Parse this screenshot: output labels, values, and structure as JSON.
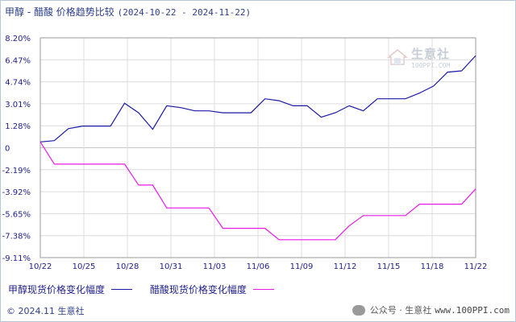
{
  "header": {
    "title": "甲醇 - 醋酸 价格趋势比较",
    "date_range": "(2024-10-22 - 2024-11-22)"
  },
  "watermark": {
    "name": "生意社",
    "site": "100PPI.COM"
  },
  "footer": {
    "copyright": "© 2024.11 生意社",
    "wechat": "公众号 · 生意社",
    "site": "www.100PPI.com"
  },
  "colors": {
    "series_methanol": "#1a1aa6",
    "series_acetic": "#e81ae8",
    "grid": "#dcdcdc",
    "axis_text": "#1e1e8a"
  },
  "chart_data": {
    "type": "line",
    "title": "甲醇 - 醋酸 价格趋势比较",
    "xlabel": "",
    "ylabel": "",
    "x_tick_labels": [
      "10/22",
      "10/25",
      "10/28",
      "10/31",
      "11/03",
      "11/06",
      "11/09",
      "11/12",
      "11/15",
      "11/18",
      "11/22"
    ],
    "y_tick_labels": [
      "8.20%",
      "6.47%",
      "4.74%",
      "3.01%",
      "1.28%",
      "0",
      "-2.19%",
      "-3.92%",
      "-5.65%",
      "-7.38%",
      "-9.11%"
    ],
    "ylim": [
      -9.11,
      8.2
    ],
    "x": [
      "10/22",
      "10/23",
      "10/24",
      "10/25",
      "10/26",
      "10/27",
      "10/28",
      "10/29",
      "10/30",
      "10/31",
      "11/01",
      "11/02",
      "11/03",
      "11/04",
      "11/05",
      "11/06",
      "11/07",
      "11/08",
      "11/09",
      "11/10",
      "11/11",
      "11/12",
      "11/13",
      "11/14",
      "11/15",
      "11/16",
      "11/17",
      "11/18",
      "11/19",
      "11/20",
      "11/21",
      "11/22"
    ],
    "grid": true,
    "legend": "bottom-left",
    "series": [
      {
        "name": "甲醇现货价格变化幅度",
        "values": [
          0,
          0.1,
          1.05,
          1.25,
          1.25,
          1.25,
          3.05,
          2.3,
          1.0,
          2.85,
          2.7,
          2.45,
          2.45,
          2.3,
          2.3,
          2.3,
          3.4,
          3.25,
          2.85,
          2.85,
          1.95,
          2.3,
          2.85,
          2.45,
          3.4,
          3.4,
          3.4,
          3.85,
          4.4,
          5.5,
          5.6,
          6.8
        ]
      },
      {
        "name": "醋酸现货价格变化幅度",
        "values": [
          0,
          -1.75,
          -1.75,
          -1.75,
          -1.75,
          -1.75,
          -1.75,
          -3.4,
          -3.4,
          -5.2,
          -5.2,
          -5.2,
          -5.2,
          -6.8,
          -6.8,
          -6.8,
          -6.8,
          -7.7,
          -7.7,
          -7.7,
          -7.7,
          -7.7,
          -6.6,
          -5.8,
          -5.8,
          -5.8,
          -5.8,
          -4.9,
          -4.9,
          -4.9,
          -4.9,
          -3.7
        ]
      }
    ]
  }
}
